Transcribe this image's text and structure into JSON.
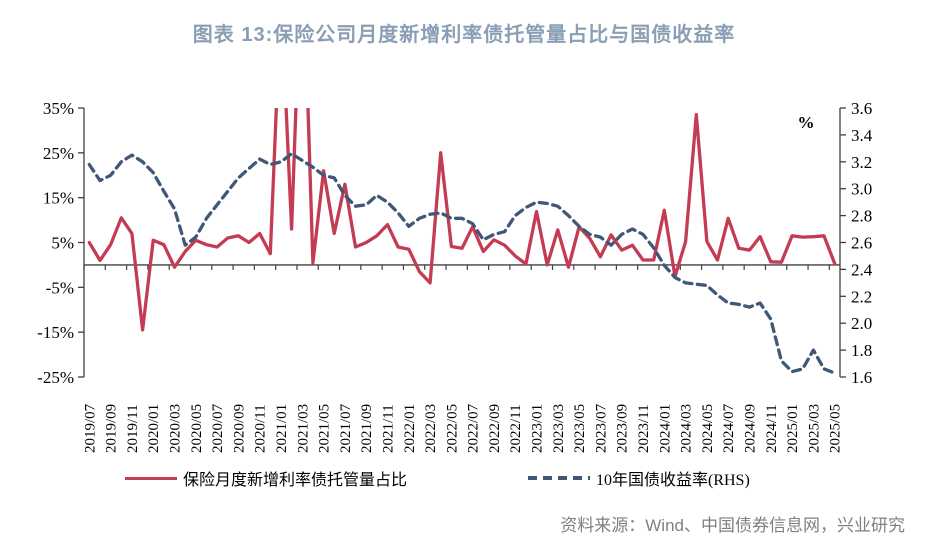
{
  "title": "图表 13:保险公司月度新增利率债托管量占比与国债收益率",
  "source": "资料来源：Wind、中国债券信息网，兴业研究",
  "rhs_unit_label": "%",
  "colors": {
    "red_series": "#C43B54",
    "blue_series": "#3F5878",
    "title_text": "#8A9FB5",
    "source_text": "#808080",
    "axis_line": "#404040",
    "tick_label": "#000000"
  },
  "chart_data": {
    "type": "line",
    "title": "图表 13:保险公司月度新增利率债托管量占比与国债收益率",
    "grid": false,
    "legend_position": "bottom",
    "x_label_interval": 2,
    "x": [
      "2019/07",
      "2019/08",
      "2019/09",
      "2019/10",
      "2019/11",
      "2019/12",
      "2020/01",
      "2020/02",
      "2020/03",
      "2020/04",
      "2020/05",
      "2020/06",
      "2020/07",
      "2020/08",
      "2020/09",
      "2020/10",
      "2020/11",
      "2020/12",
      "2021/01",
      "2021/02",
      "2021/03",
      "2021/04",
      "2021/05",
      "2021/06",
      "2021/07",
      "2021/08",
      "2021/09",
      "2021/10",
      "2021/11",
      "2021/12",
      "2022/01",
      "2022/02",
      "2022/03",
      "2022/04",
      "2022/05",
      "2022/06",
      "2022/07",
      "2022/08",
      "2022/09",
      "2022/10",
      "2022/11",
      "2022/12",
      "2023/01",
      "2023/02",
      "2023/03",
      "2023/04",
      "2023/05",
      "2023/06",
      "2023/07",
      "2023/08",
      "2023/09",
      "2023/10",
      "2023/11",
      "2023/12",
      "2024/01",
      "2024/02",
      "2024/03",
      "2024/04",
      "2024/05",
      "2024/06",
      "2024/07",
      "2024/08",
      "2024/09",
      "2024/10",
      "2024/11",
      "2024/12",
      "2025/01",
      "2025/02",
      "2025/03",
      "2025/04",
      "2025/05"
    ],
    "series": [
      {
        "name": "保险月度新增利率债托管量占比",
        "axis": "left",
        "style": "solid",
        "color": "#C43B54",
        "unit": "%",
        "clipped_above_axis_max": [
          "2021/01",
          "2021/03"
        ],
        "values": [
          5,
          1,
          4.5,
          10.5,
          7,
          -14.5,
          5.5,
          4.5,
          -0.5,
          3,
          5.5,
          4.5,
          4,
          6,
          6.5,
          5,
          7,
          2.5,
          60,
          8,
          75,
          0.5,
          21,
          7,
          18,
          4,
          5,
          6.5,
          9,
          4,
          3.5,
          -1.5,
          -4,
          25,
          4.1,
          3.7,
          8.5,
          3,
          5.6,
          4.4,
          2,
          0.2,
          11.9,
          0,
          7.8,
          -0.5,
          8.5,
          5.9,
          1.8,
          6.7,
          3.3,
          4.4,
          1.1,
          1.1,
          12.2,
          -2.6,
          5.2,
          33.5,
          5.2,
          1.1,
          10.4,
          3.7,
          3.3,
          6.3,
          0.7,
          0.6,
          6.5,
          6.2,
          6.3,
          6.5,
          0.3
        ]
      },
      {
        "name": "10年国债收益率(RHS)",
        "axis": "right",
        "style": "dashed",
        "color": "#3F5878",
        "unit": "%",
        "values": [
          3.18,
          3.06,
          3.1,
          3.2,
          3.25,
          3.2,
          3.12,
          2.98,
          2.85,
          2.58,
          2.64,
          2.78,
          2.88,
          2.98,
          3.08,
          3.15,
          3.22,
          3.18,
          3.2,
          3.26,
          3.21,
          3.16,
          3.1,
          3.08,
          2.95,
          2.87,
          2.88,
          2.95,
          2.9,
          2.82,
          2.72,
          2.78,
          2.81,
          2.82,
          2.78,
          2.78,
          2.74,
          2.62,
          2.66,
          2.68,
          2.8,
          2.86,
          2.9,
          2.89,
          2.87,
          2.8,
          2.72,
          2.66,
          2.64,
          2.58,
          2.66,
          2.7,
          2.66,
          2.56,
          2.43,
          2.34,
          2.3,
          2.29,
          2.28,
          2.21,
          2.15,
          2.14,
          2.12,
          2.15,
          2.03,
          1.72,
          1.64,
          1.66,
          1.8,
          1.66,
          1.63
        ]
      }
    ],
    "lhs_axis": {
      "min": -25,
      "max": 35,
      "ticks": [
        {
          "label": "35%",
          "value": 35
        },
        {
          "label": "25%",
          "value": 25
        },
        {
          "label": "15%",
          "value": 15
        },
        {
          "label": "5%",
          "value": 5
        },
        {
          "label": "-5%",
          "value": -5
        },
        {
          "label": "-15%",
          "value": -15
        },
        {
          "label": "-25%",
          "value": -25
        }
      ]
    },
    "rhs_axis": {
      "min": 1.6,
      "max": 3.6,
      "unit": "%",
      "ticks": [
        {
          "label": "3.6",
          "value": 3.6
        },
        {
          "label": "3.4",
          "value": 3.4
        },
        {
          "label": "3.2",
          "value": 3.2
        },
        {
          "label": "3.0",
          "value": 3.0
        },
        {
          "label": "2.8",
          "value": 2.8
        },
        {
          "label": "2.6",
          "value": 2.6
        },
        {
          "label": "2.4",
          "value": 2.4
        },
        {
          "label": "2.2",
          "value": 2.2
        },
        {
          "label": "2.0",
          "value": 2.0
        },
        {
          "label": "1.8",
          "value": 1.8
        },
        {
          "label": "1.6",
          "value": 1.6
        }
      ]
    }
  }
}
